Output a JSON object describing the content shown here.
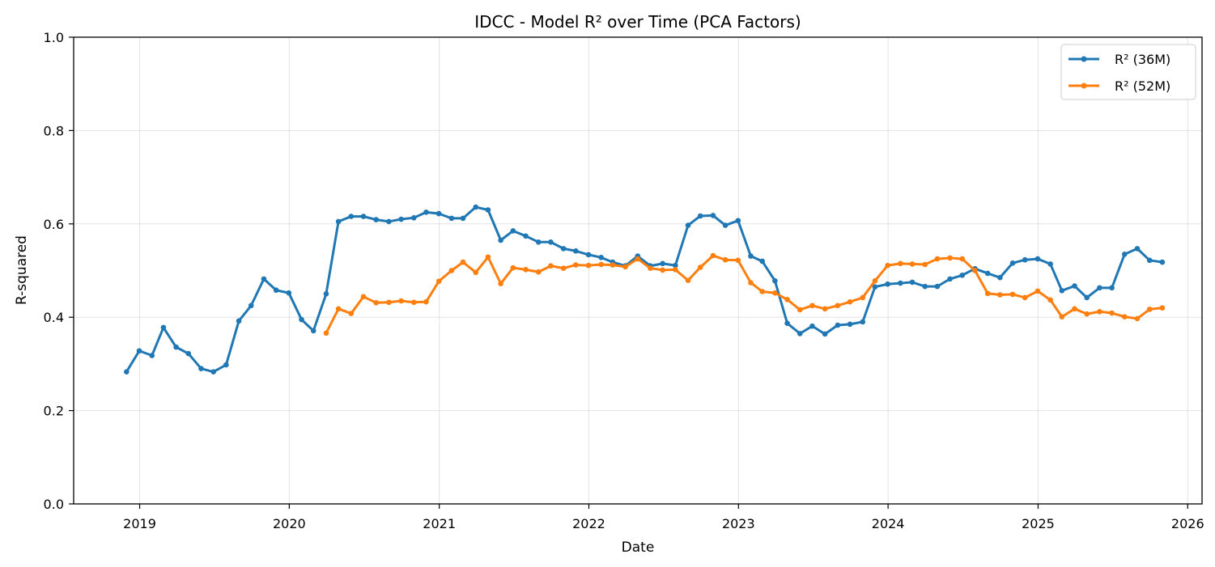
{
  "chart_data": {
    "type": "line",
    "title": "IDCC - Model R² over Time (PCA Factors)",
    "xlabel": "Date",
    "ylabel": "R-squared",
    "ylim": [
      0.0,
      1.0
    ],
    "xlim": [
      "2018-07-24",
      "2026-02-05"
    ],
    "yticks": [
      0.0,
      0.2,
      0.4,
      0.6,
      0.8,
      1.0
    ],
    "yticklabels": [
      "0.0",
      "0.2",
      "0.4",
      "0.6",
      "0.8",
      "1.0"
    ],
    "xticks": [
      "2019-01-01",
      "2020-01-01",
      "2021-01-01",
      "2022-01-01",
      "2023-01-01",
      "2024-01-01",
      "2025-01-01",
      "2026-01-01"
    ],
    "xticklabels": [
      "2019",
      "2020",
      "2021",
      "2022",
      "2023",
      "2024",
      "2025",
      "2026"
    ],
    "grid": true,
    "legend_position": "top-right",
    "series": [
      {
        "name": "R² (36M)",
        "color": "#1f77b4",
        "x": [
          "2018-11-30",
          "2018-12-31",
          "2019-01-31",
          "2019-02-28",
          "2019-03-31",
          "2019-04-30",
          "2019-05-31",
          "2019-06-30",
          "2019-07-31",
          "2019-08-31",
          "2019-09-30",
          "2019-10-31",
          "2019-11-30",
          "2019-12-31",
          "2020-01-31",
          "2020-02-29",
          "2020-03-31",
          "2020-04-30",
          "2020-05-31",
          "2020-06-30",
          "2020-07-31",
          "2020-08-31",
          "2020-09-30",
          "2020-10-31",
          "2020-11-30",
          "2020-12-31",
          "2021-01-31",
          "2021-02-28",
          "2021-03-31",
          "2021-04-30",
          "2021-05-31",
          "2021-06-30",
          "2021-07-31",
          "2021-08-31",
          "2021-09-30",
          "2021-10-31",
          "2021-11-30",
          "2021-12-31",
          "2022-01-31",
          "2022-02-28",
          "2022-03-31",
          "2022-04-30",
          "2022-05-31",
          "2022-06-30",
          "2022-07-31",
          "2022-08-31",
          "2022-09-30",
          "2022-10-31",
          "2022-11-30",
          "2022-12-31",
          "2023-01-31",
          "2023-02-28",
          "2023-03-31",
          "2023-04-30",
          "2023-05-31",
          "2023-06-30",
          "2023-07-31",
          "2023-08-31",
          "2023-09-30",
          "2023-10-31",
          "2023-11-30",
          "2023-12-31",
          "2024-01-31",
          "2024-02-29",
          "2024-03-31",
          "2024-04-30",
          "2024-05-31",
          "2024-06-30",
          "2024-07-31",
          "2024-08-31",
          "2024-09-30",
          "2024-10-31",
          "2024-11-30",
          "2024-12-31",
          "2025-01-31",
          "2025-02-28",
          "2025-03-31",
          "2025-04-30",
          "2025-05-31",
          "2025-06-30",
          "2025-07-31",
          "2025-08-31",
          "2025-09-30",
          "2025-10-31"
        ],
        "values": [
          0.283,
          0.328,
          0.318,
          0.378,
          0.336,
          0.322,
          0.29,
          0.283,
          0.298,
          0.392,
          0.425,
          0.482,
          0.458,
          0.452,
          0.395,
          0.371,
          0.45,
          0.605,
          0.616,
          0.616,
          0.609,
          0.605,
          0.61,
          0.613,
          0.625,
          0.622,
          0.612,
          0.612,
          0.636,
          0.63,
          0.565,
          0.585,
          0.574,
          0.561,
          0.561,
          0.547,
          0.542,
          0.534,
          0.528,
          0.518,
          0.51,
          0.531,
          0.51,
          0.515,
          0.511,
          0.597,
          0.617,
          0.618,
          0.597,
          0.607,
          0.531,
          0.52,
          0.478,
          0.387,
          0.365,
          0.381,
          0.364,
          0.383,
          0.385,
          0.39,
          0.465,
          0.471,
          0.473,
          0.475,
          0.466,
          0.466,
          0.482,
          0.49,
          0.504,
          0.494,
          0.485,
          0.516,
          0.523,
          0.525,
          0.514,
          0.457,
          0.467,
          0.442,
          0.463,
          0.463,
          0.535,
          0.547,
          0.522,
          0.518
        ]
      },
      {
        "name": "R² (52M)",
        "color": "#ff7f0e",
        "x": [
          "2020-03-31",
          "2020-04-30",
          "2020-05-31",
          "2020-06-30",
          "2020-07-31",
          "2020-08-31",
          "2020-09-30",
          "2020-10-31",
          "2020-11-30",
          "2020-12-31",
          "2021-01-31",
          "2021-02-28",
          "2021-03-31",
          "2021-04-30",
          "2021-05-31",
          "2021-06-30",
          "2021-07-31",
          "2021-08-31",
          "2021-09-30",
          "2021-10-31",
          "2021-11-30",
          "2021-12-31",
          "2022-01-31",
          "2022-02-28",
          "2022-03-31",
          "2022-04-30",
          "2022-05-31",
          "2022-06-30",
          "2022-07-31",
          "2022-08-31",
          "2022-09-30",
          "2022-10-31",
          "2022-11-30",
          "2022-12-31",
          "2023-01-31",
          "2023-02-28",
          "2023-03-31",
          "2023-04-30",
          "2023-05-31",
          "2023-06-30",
          "2023-07-31",
          "2023-08-31",
          "2023-09-30",
          "2023-10-31",
          "2023-11-30",
          "2023-12-31",
          "2024-01-31",
          "2024-02-29",
          "2024-03-31",
          "2024-04-30",
          "2024-05-31",
          "2024-06-30",
          "2024-07-31",
          "2024-08-31",
          "2024-09-30",
          "2024-10-31",
          "2024-11-30",
          "2024-12-31",
          "2025-01-31",
          "2025-02-28",
          "2025-03-31",
          "2025-04-30",
          "2025-05-31",
          "2025-06-30",
          "2025-07-31",
          "2025-08-31",
          "2025-09-30",
          "2025-10-31"
        ],
        "values": [
          0.366,
          0.418,
          0.408,
          0.444,
          0.431,
          0.432,
          0.435,
          0.432,
          0.433,
          0.477,
          0.5,
          0.518,
          0.496,
          0.529,
          0.472,
          0.506,
          0.502,
          0.497,
          0.51,
          0.505,
          0.512,
          0.511,
          0.513,
          0.512,
          0.508,
          0.525,
          0.505,
          0.501,
          0.502,
          0.479,
          0.507,
          0.532,
          0.523,
          0.522,
          0.474,
          0.455,
          0.452,
          0.438,
          0.416,
          0.425,
          0.418,
          0.425,
          0.433,
          0.442,
          0.478,
          0.511,
          0.515,
          0.514,
          0.513,
          0.525,
          0.527,
          0.525,
          0.5,
          0.451,
          0.448,
          0.449,
          0.442,
          0.456,
          0.437,
          0.401,
          0.418,
          0.407,
          0.412,
          0.409,
          0.401,
          0.397,
          0.417,
          0.42
        ]
      }
    ]
  }
}
